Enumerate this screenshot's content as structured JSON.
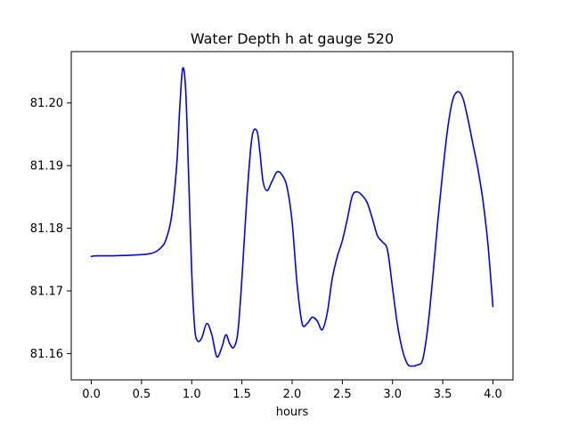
{
  "chart_data": {
    "type": "line",
    "title": "Water Depth h at gauge 520",
    "xlabel": "hours",
    "ylabel": "",
    "xlim": [
      -0.2,
      4.2
    ],
    "ylim": [
      81.1558,
      81.2082
    ],
    "xticks": [
      0.0,
      0.5,
      1.0,
      1.5,
      2.0,
      2.5,
      3.0,
      3.5,
      4.0
    ],
    "xtick_labels": [
      "0.0",
      "0.5",
      "1.0",
      "1.5",
      "2.0",
      "2.5",
      "3.0",
      "3.5",
      "4.0"
    ],
    "yticks": [
      81.16,
      81.17,
      81.18,
      81.19,
      81.2
    ],
    "ytick_labels": [
      "81.16",
      "81.17",
      "81.18",
      "81.19",
      "81.20"
    ],
    "grid": false,
    "series": [
      {
        "name": "",
        "color": "#0000ff",
        "x": [
          0.0,
          0.05,
          0.2,
          0.4,
          0.6,
          0.7,
          0.75,
          0.8,
          0.85,
          0.88,
          0.91,
          0.94,
          0.97,
          1.0,
          1.03,
          1.06,
          1.1,
          1.15,
          1.2,
          1.25,
          1.3,
          1.34,
          1.38,
          1.42,
          1.46,
          1.5,
          1.55,
          1.6,
          1.65,
          1.68,
          1.71,
          1.75,
          1.8,
          1.85,
          1.9,
          1.95,
          2.0,
          2.05,
          2.1,
          2.15,
          2.2,
          2.25,
          2.3,
          2.35,
          2.4,
          2.45,
          2.5,
          2.55,
          2.6,
          2.65,
          2.7,
          2.75,
          2.8,
          2.85,
          2.9,
          2.95,
          3.0,
          3.05,
          3.1,
          3.15,
          3.2,
          3.25,
          3.3,
          3.35,
          3.4,
          3.45,
          3.5,
          3.55,
          3.6,
          3.65,
          3.7,
          3.75,
          3.8,
          3.85,
          3.9,
          3.95,
          4.0
        ],
        "y": [
          81.1755,
          81.1756,
          81.1756,
          81.1757,
          81.176,
          81.177,
          81.1785,
          81.182,
          81.19,
          81.199,
          81.2055,
          81.202,
          81.188,
          81.173,
          81.164,
          81.162,
          81.1625,
          81.1648,
          81.163,
          81.1595,
          81.161,
          81.163,
          81.1615,
          81.161,
          81.1635,
          81.172,
          81.185,
          81.1945,
          81.1955,
          81.192,
          81.1875,
          81.186,
          81.1875,
          81.189,
          81.1885,
          81.1865,
          81.181,
          81.171,
          81.1648,
          81.1648,
          81.1658,
          81.1652,
          81.1638,
          81.1665,
          81.172,
          81.1755,
          81.178,
          81.1815,
          81.1852,
          81.1858,
          81.1852,
          81.184,
          81.1815,
          81.1788,
          81.1778,
          81.1765,
          81.1705,
          81.1645,
          81.1605,
          81.1583,
          81.158,
          81.1582,
          81.159,
          81.164,
          81.172,
          81.181,
          81.189,
          81.196,
          81.2005,
          81.2018,
          81.2008,
          81.1975,
          81.1935,
          81.1895,
          81.1845,
          81.1775,
          81.1675
        ]
      }
    ]
  }
}
